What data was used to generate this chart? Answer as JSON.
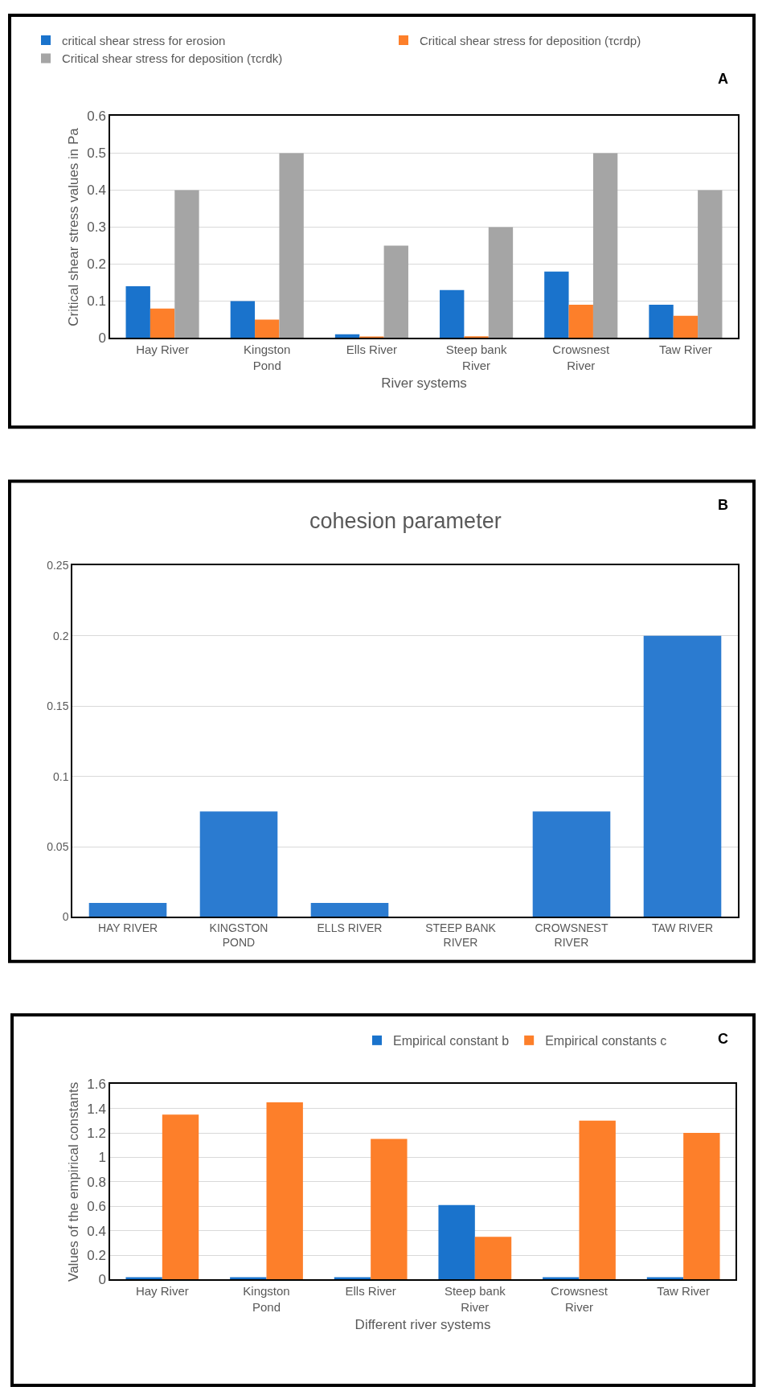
{
  "chart_data": [
    {
      "type": "bar",
      "xlabel": "River systems",
      "ylabel": "Critical shear stress values in Pa",
      "categories": [
        "Hay River",
        "Kingston\nPond",
        "Ells River",
        "Steep bank\nRiver",
        "Crowsnest\nRiver",
        "Taw River"
      ],
      "series": [
        {
          "name": "critical shear stress for erosion",
          "color": "#1a73cc",
          "values": [
            0.14,
            0.1,
            0.01,
            0.13,
            0.18,
            0.09
          ]
        },
        {
          "name": "Critical shear stress for deposition (τcrdp)",
          "color": "#fd7f2a",
          "values": [
            0.08,
            0.05,
            0.004,
            0.005,
            0.09,
            0.06
          ]
        },
        {
          "name": "Critical shear stress for deposition (τcrdk)",
          "color": "#a5a5a5",
          "values": [
            0.4,
            0.5,
            0.25,
            0.3,
            0.5,
            0.4
          ]
        }
      ],
      "ylim": [
        0,
        0.6
      ],
      "yticks": [
        0,
        0.1,
        0.2,
        0.3,
        0.4,
        0.5,
        0.6
      ],
      "grid": "y",
      "legend": "top",
      "annotations": [
        "A"
      ]
    },
    {
      "type": "bar",
      "title": "cohesion parameter",
      "categories": [
        "HAY RIVER",
        "KINGSTON\nPOND",
        "ELLS RIVER",
        "STEEP BANK\nRIVER",
        "CROWSNEST\nRIVER",
        "TAW RIVER"
      ],
      "series": [
        {
          "color": "#2b7bd0",
          "values": [
            0.01,
            0.075,
            0.01,
            0,
            0.075,
            0.2
          ]
        }
      ],
      "ylim": [
        0,
        0.25
      ],
      "yticks": [
        0,
        0.05,
        0.1,
        0.15,
        0.2,
        0.25
      ],
      "grid": "y",
      "annotations": [
        "B"
      ]
    },
    {
      "type": "bar",
      "xlabel": "Different river systems",
      "ylabel": "Values of the empirical constants",
      "categories": [
        "Hay River",
        "Kingston\nPond",
        "Ells River",
        "Steep bank\nRiver",
        "Crowsnest\nRiver",
        "Taw River"
      ],
      "series": [
        {
          "name": "Empirical constant b",
          "color": "#1a73cc",
          "values": [
            0.02,
            0.02,
            0.02,
            0.61,
            0.02,
            0.02
          ]
        },
        {
          "name": "Empirical constants c",
          "color": "#fd7f2a",
          "values": [
            1.35,
            1.45,
            1.15,
            0.35,
            1.3,
            1.2
          ]
        }
      ],
      "ylim": [
        0,
        1.6
      ],
      "yticks": [
        0,
        0.2,
        0.4,
        0.6,
        0.8,
        1,
        1.2,
        1.4,
        1.6
      ],
      "grid": "y",
      "legend": "top right",
      "annotations": [
        "C"
      ]
    }
  ]
}
